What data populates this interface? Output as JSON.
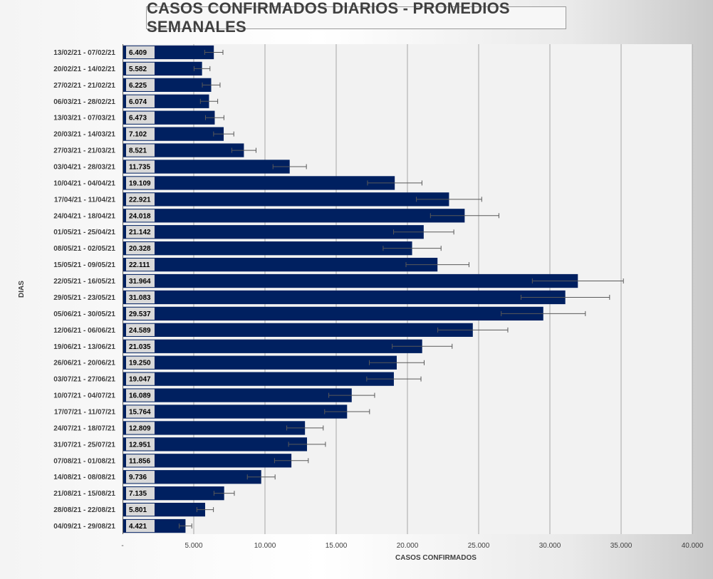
{
  "chart_data": {
    "type": "bar",
    "orientation": "horizontal",
    "title": "CASOS CONFIRMADOS DIARIOS - PROMEDIOS SEMANALES",
    "xlabel": "CASOS CONFIRMADOS",
    "ylabel": "DIAS",
    "xlim": [
      0,
      40000
    ],
    "x_ticks": [
      0,
      5000,
      10000,
      15000,
      20000,
      25000,
      30000,
      35000,
      40000
    ],
    "x_tick_labels": [
      "-",
      "5.000",
      "10.000",
      "15.000",
      "20.000",
      "25.000",
      "30.000",
      "35.000",
      "40.000"
    ],
    "grid": "vertical",
    "legend": "none",
    "bar_color": "#002060",
    "categories": [
      "13/02/21 - 07/02/21",
      "20/02/21 - 14/02/21",
      "27/02/21 - 21/02/21",
      "06/03/21 - 28/02/21",
      "13/03/21 - 07/03/21",
      "20/03/21 - 14/03/21",
      "27/03/21 - 21/03/21",
      "03/04/21 - 28/03/21",
      "10/04/21 - 04/04/21",
      "17/04/21 - 11/04/21",
      "24/04/21 - 18/04/21",
      "01/05/21 - 25/04/21",
      "08/05/21 - 02/05/21",
      "15/05/21 - 09/05/21",
      "22/05/21 - 16/05/21",
      "29/05/21 - 23/05/21",
      "05/06/21 - 30/05/21",
      "12/06/21 - 06/06/21",
      "19/06/21 - 13/06/21",
      "26/06/21 - 20/06/21",
      "03/07/21 - 27/06/21",
      "10/07/21 - 04/07/21",
      "17/07/21 - 11/07/21",
      "24/07/21 - 18/07/21",
      "31/07/21 - 25/07/21",
      "07/08/21 - 01/08/21",
      "14/08/21 - 08/08/21",
      "21/08/21 - 15/08/21",
      "28/08/21 - 22/08/21",
      "04/09/21 - 29/08/21"
    ],
    "values": [
      6409,
      5582,
      6225,
      6074,
      6473,
      7102,
      8521,
      11735,
      19109,
      22921,
      24018,
      21142,
      20328,
      22111,
      31964,
      31083,
      29537,
      24589,
      21035,
      19250,
      19047,
      16089,
      15764,
      12809,
      12951,
      11856,
      9736,
      7135,
      5801,
      4421
    ],
    "value_labels": [
      "6.409",
      "5.582",
      "6.225",
      "6.074",
      "6.473",
      "7.102",
      "8.521",
      "11.735",
      "19.109",
      "22.921",
      "24.018",
      "21.142",
      "20.328",
      "22.111",
      "31.964",
      "31.083",
      "29.537",
      "24.589",
      "21.035",
      "19.250",
      "19.047",
      "16.089",
      "15.764",
      "12.809",
      "12.951",
      "11.856",
      "9.736",
      "7.135",
      "5.801",
      "4.421"
    ],
    "error_bars": "±10%"
  }
}
